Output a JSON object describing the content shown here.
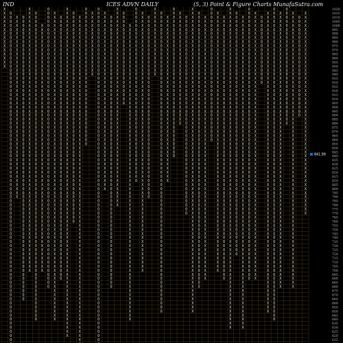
{
  "header": {
    "left": "IND",
    "center": "ICES ADVN  DAILY",
    "right": "(5, 3) Point & Figure    Charts MunafaSutra.com"
  },
  "chart_data": {
    "type": "point-and-figure",
    "box_size": 5,
    "reversal": 3,
    "columns": 49,
    "ylim": [
      610,
      1020
    ],
    "y_ticks": [
      1020,
      1015,
      1010,
      1005,
      1000,
      995,
      990,
      985,
      980,
      975,
      970,
      965,
      960,
      955,
      950,
      945,
      940,
      935,
      930,
      925,
      920,
      915,
      910,
      905,
      900,
      895,
      890,
      885,
      880,
      875,
      870,
      865,
      860,
      855,
      850,
      845,
      840,
      835,
      830,
      825,
      820,
      815,
      810,
      805,
      800,
      795,
      790,
      785,
      780,
      775,
      770,
      765,
      760,
      755,
      750,
      745,
      740,
      735,
      730,
      725,
      720,
      715,
      710,
      705,
      700,
      695,
      690,
      685,
      680,
      675,
      670,
      665,
      660,
      655,
      650,
      645,
      640,
      635,
      630,
      625,
      620,
      615,
      610
    ],
    "last_price": 841.99,
    "last_price_label": "841.99",
    "last_price_color": "#1e6fd8",
    "colors": {
      "background": "#000000",
      "grid": "#4a3a12",
      "text": "#e8e8e8"
    },
    "column_ranges": [
      {
        "top": 1020,
        "bottom": 950
      },
      {
        "top": 1015,
        "bottom": 610
      },
      {
        "top": 1010,
        "bottom": 790
      },
      {
        "top": 1010,
        "bottom": 665
      },
      {
        "top": 1020,
        "bottom": 700
      },
      {
        "top": 1015,
        "bottom": 640
      },
      {
        "top": 1000,
        "bottom": 700
      },
      {
        "top": 1020,
        "bottom": 680
      },
      {
        "top": 1015,
        "bottom": 640
      },
      {
        "top": 1010,
        "bottom": 690
      },
      {
        "top": 1020,
        "bottom": 620
      },
      {
        "top": 1015,
        "bottom": 760
      },
      {
        "top": 1010,
        "bottom": 610
      },
      {
        "top": 1020,
        "bottom": 855
      },
      {
        "top": 1015,
        "bottom": 940
      },
      {
        "top": 1020,
        "bottom": 600
      },
      {
        "top": 1015,
        "bottom": 800
      },
      {
        "top": 1010,
        "bottom": 680
      },
      {
        "top": 1020,
        "bottom": 780
      },
      {
        "top": 1015,
        "bottom": 905
      },
      {
        "top": 1000,
        "bottom": 640
      },
      {
        "top": 1020,
        "bottom": 810
      },
      {
        "top": 1015,
        "bottom": 700
      },
      {
        "top": 1010,
        "bottom": 790
      },
      {
        "top": 1020,
        "bottom": 940
      },
      {
        "top": 1015,
        "bottom": 650
      },
      {
        "top": 1010,
        "bottom": 810
      },
      {
        "top": 1020,
        "bottom": 840
      },
      {
        "top": 1015,
        "bottom": 880
      },
      {
        "top": 1010,
        "bottom": 770
      },
      {
        "top": 1020,
        "bottom": 650
      },
      {
        "top": 1015,
        "bottom": 680
      },
      {
        "top": 1010,
        "bottom": 690
      },
      {
        "top": 1020,
        "bottom": 860
      },
      {
        "top": 1015,
        "bottom": 700
      },
      {
        "top": 1010,
        "bottom": 690
      },
      {
        "top": 1020,
        "bottom": 630
      },
      {
        "top": 1015,
        "bottom": 720
      },
      {
        "top": 1010,
        "bottom": 630
      },
      {
        "top": 1020,
        "bottom": 690
      },
      {
        "top": 1015,
        "bottom": 690
      },
      {
        "top": 1010,
        "bottom": 930
      },
      {
        "top": 1015,
        "bottom": 650
      },
      {
        "top": 1020,
        "bottom": 640
      },
      {
        "top": 1015,
        "bottom": 680
      },
      {
        "top": 1020,
        "bottom": 880
      },
      {
        "top": 1015,
        "bottom": 680
      },
      {
        "top": 1010,
        "bottom": 890
      },
      {
        "top": 1015,
        "bottom": 770
      }
    ]
  }
}
